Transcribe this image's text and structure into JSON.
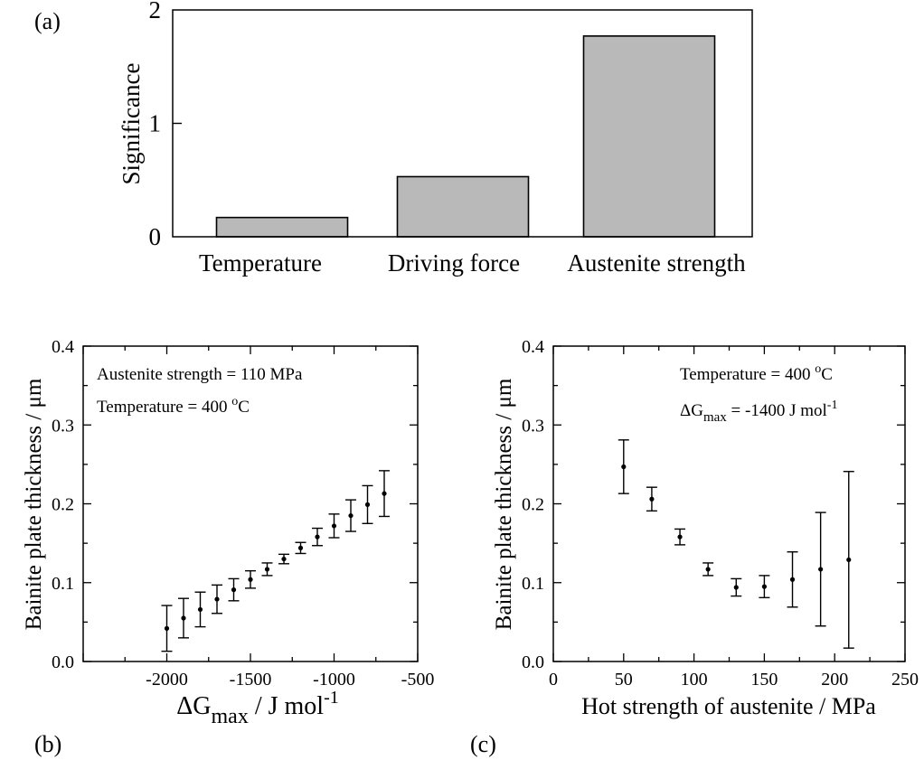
{
  "panel_labels": {
    "a": "(a)",
    "b": "(b)",
    "c": "(c)"
  },
  "chart_data": [
    {
      "type": "bar",
      "categories": [
        "Temperature",
        "Driving force",
        "Austenite strength"
      ],
      "values": [
        0.17,
        0.53,
        1.77
      ],
      "ylabel": "Significance",
      "ylim": [
        0,
        2
      ],
      "yticks": [
        0,
        1,
        2
      ],
      "bar_color": "#b9b9b9"
    },
    {
      "type": "scatter",
      "xlabel_main": "ΔG",
      "xlabel_sub": "max",
      "xlabel_unit": " / J mol",
      "xlabel_sup": "-1",
      "ylabel": "Bainite plate thickness / μm",
      "xlim": [
        -2500,
        -500
      ],
      "ylim": [
        0,
        0.4
      ],
      "xticks": [
        -2000,
        -1500,
        -1000,
        -500
      ],
      "yticks": [
        0.0,
        0.1,
        0.2,
        0.3,
        0.4
      ],
      "annotations": [
        "Austenite strength = 110 MPa",
        "Temperature = 400 °C"
      ],
      "x": [
        -2000,
        -1900,
        -1800,
        -1700,
        -1600,
        -1500,
        -1400,
        -1300,
        -1200,
        -1100,
        -1000,
        -900,
        -800,
        -700
      ],
      "y": [
        0.042,
        0.055,
        0.066,
        0.079,
        0.091,
        0.104,
        0.117,
        0.13,
        0.144,
        0.158,
        0.172,
        0.185,
        0.199,
        0.213
      ],
      "err": [
        0.029,
        0.025,
        0.022,
        0.018,
        0.014,
        0.011,
        0.008,
        0.006,
        0.007,
        0.011,
        0.015,
        0.02,
        0.024,
        0.029
      ]
    },
    {
      "type": "scatter",
      "xlabel": "Hot strength of austenite / MPa",
      "ylabel": "Bainite plate thickness / μm",
      "xlim": [
        0,
        250
      ],
      "ylim": [
        0,
        0.4
      ],
      "xticks": [
        0,
        50,
        100,
        150,
        200,
        250
      ],
      "yticks": [
        0.0,
        0.1,
        0.2,
        0.3,
        0.4
      ],
      "annotations": [
        "Temperature = 400 °C",
        "ΔG",
        "max",
        " = -1400 J mol",
        "-1"
      ],
      "x": [
        50,
        70,
        90,
        110,
        130,
        150,
        170,
        190,
        210
      ],
      "y": [
        0.247,
        0.206,
        0.158,
        0.117,
        0.094,
        0.095,
        0.104,
        0.117,
        0.129
      ],
      "err": [
        0.034,
        0.015,
        0.01,
        0.008,
        0.011,
        0.014,
        0.035,
        0.072,
        0.112
      ]
    }
  ]
}
